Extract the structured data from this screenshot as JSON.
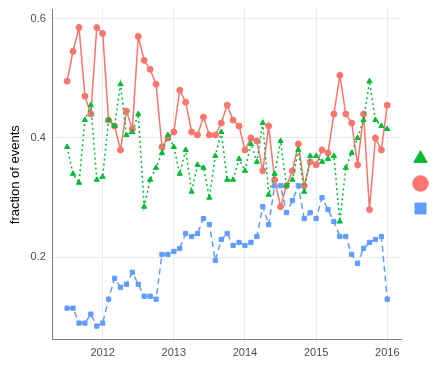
{
  "chart_data": {
    "type": "line",
    "y_label": "fraction of events",
    "x": [
      2011.5,
      2011.583,
      2011.667,
      2011.75,
      2011.833,
      2011.917,
      2012,
      2012.083,
      2012.167,
      2012.25,
      2012.333,
      2012.417,
      2012.5,
      2012.583,
      2012.667,
      2012.75,
      2012.833,
      2012.917,
      2013,
      2013.083,
      2013.167,
      2013.25,
      2013.333,
      2013.417,
      2013.5,
      2013.583,
      2013.667,
      2013.75,
      2013.833,
      2013.917,
      2014,
      2014.083,
      2014.167,
      2014.25,
      2014.333,
      2014.417,
      2014.5,
      2014.583,
      2014.667,
      2014.75,
      2014.833,
      2014.917,
      2015,
      2015.083,
      2015.167,
      2015.25,
      2015.333,
      2015.417,
      2015.5,
      2015.583,
      2015.667,
      2015.75,
      2015.833,
      2015.917,
      2016
    ],
    "series": [
      {
        "color": "#00BA38",
        "marker": "triangle",
        "line_style": "dotted",
        "values": [
          0.385,
          0.34,
          0.325,
          0.43,
          0.455,
          0.33,
          0.335,
          0.43,
          0.42,
          0.49,
          0.405,
          0.41,
          0.44,
          0.285,
          0.33,
          0.35,
          0.375,
          0.405,
          0.385,
          0.34,
          0.38,
          0.31,
          0.355,
          0.35,
          0.3,
          0.37,
          0.41,
          0.33,
          0.33,
          0.365,
          0.345,
          0.39,
          0.36,
          0.425,
          0.305,
          0.34,
          0.395,
          0.32,
          0.33,
          0.38,
          0.31,
          0.37,
          0.37,
          0.36,
          0.365,
          0.37,
          0.26,
          0.35,
          0.375,
          0.4,
          0.43,
          0.495,
          0.43,
          0.42,
          0.415
        ]
      },
      {
        "color": "#F8766D",
        "marker": "circle",
        "line_style": "solid",
        "values": [
          0.495,
          0.545,
          0.585,
          0.47,
          0.44,
          0.585,
          0.575,
          0.43,
          0.42,
          0.38,
          0.445,
          0.415,
          0.57,
          0.53,
          0.515,
          0.49,
          0.385,
          0.4,
          0.41,
          0.48,
          0.46,
          0.41,
          0.405,
          0.435,
          0.405,
          0.405,
          0.425,
          0.455,
          0.43,
          0.42,
          0.38,
          0.4,
          0.395,
          0.345,
          0.42,
          0.33,
          0.285,
          0.32,
          0.345,
          0.39,
          0.32,
          0.36,
          0.355,
          0.38,
          0.375,
          0.44,
          0.505,
          0.44,
          0.425,
          0.355,
          0.44,
          0.28,
          0.4,
          0.38,
          0.455
        ]
      },
      {
        "color": "#619CFF",
        "marker": "square",
        "line_style": "dashed",
        "values": [
          0.115,
          0.115,
          0.09,
          0.09,
          0.105,
          0.085,
          0.09,
          0.13,
          0.165,
          0.15,
          0.155,
          0.175,
          0.155,
          0.135,
          0.135,
          0.13,
          0.205,
          0.205,
          0.21,
          0.215,
          0.24,
          0.235,
          0.24,
          0.265,
          0.255,
          0.195,
          0.23,
          0.24,
          0.22,
          0.225,
          0.22,
          0.225,
          0.235,
          0.285,
          0.255,
          0.32,
          0.32,
          0.275,
          0.295,
          0.32,
          0.265,
          0.275,
          0.265,
          0.3,
          0.28,
          0.26,
          0.235,
          0.235,
          0.205,
          0.19,
          0.215,
          0.225,
          0.23,
          0.235,
          0.13
        ]
      }
    ],
    "xlim": [
      2011.3,
      2016.2
    ],
    "xticks": [
      2012,
      2013,
      2014,
      2015,
      2016
    ],
    "ylim": [
      0.062,
      0.615
    ],
    "yticks": [
      0.2,
      0.4,
      0.6
    ],
    "grid": true,
    "legend": "right"
  }
}
